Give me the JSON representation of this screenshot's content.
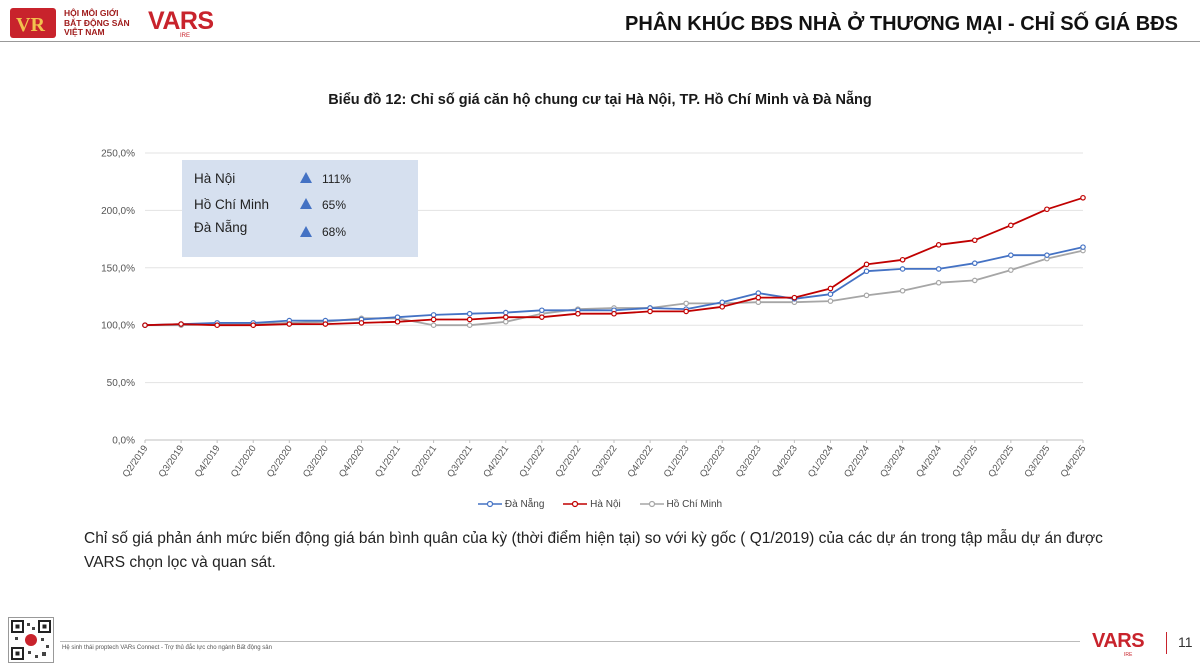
{
  "header": {
    "org_name_lines": [
      "HỘI MÔI GIỚI",
      "BẤT ĐỘNG SẢN",
      "VIỆT NAM"
    ],
    "brand": "VARS",
    "brand_sub": "IRE",
    "page_title": "PHÂN KHÚC BĐS NHÀ Ở THƯƠNG MẠI - CHỈ SỐ GIÁ BĐS"
  },
  "info_box": {
    "rows": [
      {
        "city": "Hà Nội",
        "value": "111%"
      },
      {
        "city": "Hồ Chí Minh",
        "value": "65%"
      },
      {
        "city": "Đà Nẵng",
        "value": "68%"
      }
    ],
    "arrow_color": "#4472c4"
  },
  "chart_data": {
    "type": "line",
    "title": "Biểu đồ 12: Chỉ số giá căn hộ chung cư tại  Hà Nội, TP. Hồ Chí Minh và Đà Nẵng",
    "xlabel": "",
    "ylabel": "",
    "ylim": [
      0,
      250
    ],
    "yticks": [
      "0,0%",
      "50,0%",
      "100,0%",
      "150,0%",
      "200,0%",
      "250,0%"
    ],
    "grid": true,
    "legend_position": "bottom",
    "categories": [
      "Q2/2019",
      "Q3/2019",
      "Q4/2019",
      "Q1/2020",
      "Q2/2020",
      "Q3/2020",
      "Q4/2020",
      "Q1/2021",
      "Q2/2021",
      "Q3/2021",
      "Q4/2021",
      "Q1/2022",
      "Q2/2022",
      "Q3/2022",
      "Q4/2022",
      "Q1/2023",
      "Q2/2023",
      "Q3/2023",
      "Q4/2023",
      "Q1/2024",
      "Q2/2024",
      "Q3/2024",
      "Q4/2024",
      "Q1/2025",
      "Q2/2025",
      "Q3/2025",
      "Q4/2025"
    ],
    "series": [
      {
        "name": "Đà Nẵng",
        "color": "#4472c4",
        "values": [
          100,
          101,
          102,
          102,
          104,
          104,
          105,
          107,
          109,
          110,
          111,
          113,
          113,
          113,
          115,
          114,
          120,
          128,
          123,
          127,
          147,
          149,
          149,
          154,
          161,
          161,
          168
        ]
      },
      {
        "name": "Hà Nội",
        "color": "#c00000",
        "values": [
          100,
          101,
          100,
          100,
          101,
          101,
          102,
          103,
          105,
          105,
          107,
          107,
          110,
          110,
          112,
          112,
          116,
          124,
          124,
          132,
          153,
          157,
          170,
          174,
          187,
          201,
          211
        ]
      },
      {
        "name": "Hồ Chí Minh",
        "color": "#a6a6a6",
        "values": [
          100,
          100,
          101,
          101,
          102,
          103,
          106,
          106,
          100,
          100,
          103,
          110,
          114,
          115,
          115,
          119,
          119,
          120,
          120,
          121,
          126,
          130,
          137,
          139,
          148,
          158,
          165
        ]
      }
    ]
  },
  "description": "Chỉ số giá phản ánh mức biến động giá bán bình quân của kỳ (thời điểm hiện tại) so với kỳ gốc ( Q1/2019) của các dự án trong tập mẫu dự án được VARS chọn lọc và quan sát.",
  "footer": {
    "text": "Hệ sinh thái proptech VARs Connect - Trợ thủ đắc lực cho ngành Bất động sản",
    "brand": "VARS",
    "brand_sub": "IRE",
    "page_number": "11"
  }
}
